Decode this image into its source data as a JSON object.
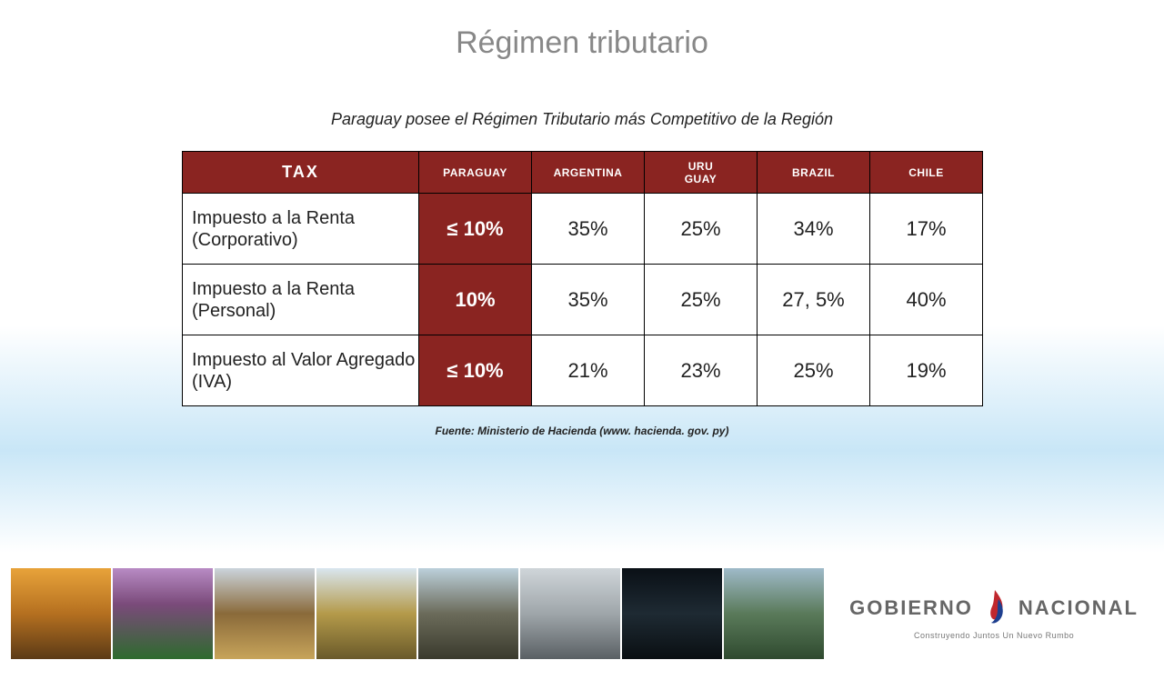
{
  "title": "Régimen tributario",
  "subtitle": "Paraguay posee el Régimen Tributario más Competitivo de la Región",
  "table": {
    "header_bg": "#8a2421",
    "header_fg": "#ffffff",
    "cell_bg": "#ffffff",
    "cell_fg": "#222222",
    "highlight_bg": "#8a2421",
    "highlight_fg": "#ffffff",
    "columns": [
      "TAX",
      "PARAGUAY",
      "ARGENTINA",
      "URU\nGUAY",
      "BRAZIL",
      "CHILE"
    ],
    "rows": [
      {
        "label": "Impuesto a la Renta (Corporativo)",
        "values": [
          "≤ 10%",
          "35%",
          "25%",
          "34%",
          "17%"
        ]
      },
      {
        "label": "Impuesto a la Renta (Personal)",
        "values": [
          "10%",
          "35%",
          "25%",
          "27, 5%",
          "40%"
        ]
      },
      {
        "label": "Impuesto al Valor Agregado (IVA)",
        "values": [
          "≤ 10%",
          "21%",
          "23%",
          "25%",
          "19%"
        ]
      }
    ],
    "highlight_col_index": 0
  },
  "source": "Fuente: Ministerio de Hacienda (www. hacienda. gov. py)",
  "logo": {
    "word1": "GOBIERNO",
    "word2": "NACIONAL",
    "tagline": "Construyendo Juntos Un Nuevo Rumbo",
    "color_red": "#c0272d",
    "color_blue": "#1e3f8f"
  }
}
